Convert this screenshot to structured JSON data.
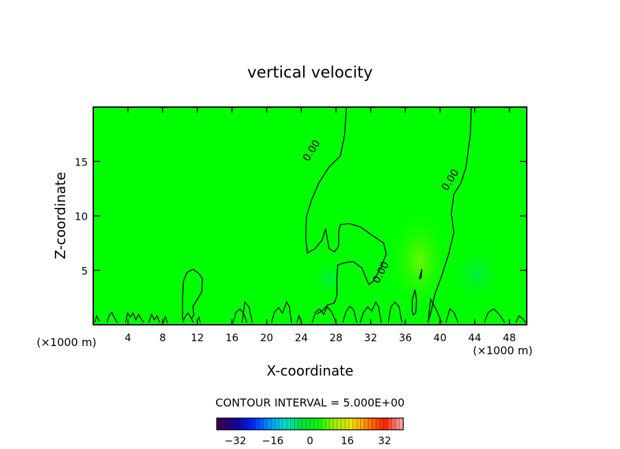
{
  "chart_data": {
    "type": "heatmap",
    "title": "vertical velocity",
    "xlabel": "X-coordinate",
    "ylabel": "Z-coordinate",
    "x_unit_left": "(×1000 m)",
    "x_unit_right": "(×1000 m)",
    "xlim": [
      0,
      50
    ],
    "ylim": [
      0,
      20
    ],
    "x_ticks": [
      4,
      8,
      12,
      16,
      20,
      24,
      28,
      32,
      36,
      40,
      44,
      48
    ],
    "y_ticks": [
      5,
      10,
      15
    ],
    "background_color": "#00ff00",
    "contour_label": "0.00",
    "contour_interval_text": "CONTOUR INTERVAL = 5.000E+00",
    "colorbar": {
      "ticks": [
        -32,
        -16,
        0,
        16,
        32
      ],
      "range": [
        -40,
        40
      ],
      "colors": [
        "#3a0050",
        "#1a0090",
        "#0020ff",
        "#0090ff",
        "#00e0c8",
        "#00e040",
        "#00ff00",
        "#a0f000",
        "#f0e000",
        "#ff8000",
        "#ff2000",
        "#ffa0a0"
      ]
    },
    "contours": [
      {
        "level": 0,
        "points": [
          [
            29.2,
            20
          ],
          [
            29,
            17.5
          ],
          [
            28.5,
            15.5
          ],
          [
            27.2,
            14.5
          ],
          [
            26,
            13
          ],
          [
            25.2,
            11.5
          ],
          [
            24.6,
            10
          ],
          [
            24.5,
            8
          ],
          [
            24.7,
            6.6
          ],
          [
            25.6,
            7
          ],
          [
            26.4,
            7.8
          ],
          [
            26.8,
            8.8
          ],
          [
            27.2,
            7
          ],
          [
            27.8,
            6.7
          ],
          [
            28.3,
            7.2
          ],
          [
            28.3,
            8.5
          ],
          [
            28.5,
            9.2
          ],
          [
            29.5,
            9.3
          ],
          [
            30.8,
            9
          ],
          [
            32.2,
            8.2
          ],
          [
            33.5,
            7.5
          ],
          [
            33.8,
            6.5
          ],
          [
            33.3,
            5.5
          ],
          [
            32.8,
            4.7
          ],
          [
            32.3,
            4
          ],
          [
            31.8,
            3.7
          ],
          [
            31.4,
            4.4
          ],
          [
            31,
            5.2
          ],
          [
            30,
            5.8
          ],
          [
            29,
            5.7
          ],
          [
            28.2,
            5.5
          ],
          [
            28.1,
            4.2
          ],
          [
            28.1,
            2.7
          ],
          [
            27.8,
            2
          ],
          [
            27,
            1.8
          ],
          [
            26.6,
            1.4
          ],
          [
            25.8,
            1
          ]
        ]
      },
      {
        "level": 0,
        "points": [
          [
            43.6,
            20
          ],
          [
            43.5,
            17.5
          ],
          [
            43,
            14.5
          ],
          [
            42.4,
            13
          ],
          [
            41.6,
            12
          ],
          [
            41.3,
            10.2
          ],
          [
            41.6,
            8.5
          ],
          [
            41,
            6.5
          ],
          [
            40.2,
            4.5
          ],
          [
            39.4,
            2.8
          ],
          [
            39,
            1.3
          ],
          [
            38.6,
            0.2
          ]
        ]
      },
      {
        "level": 0,
        "points": [
          [
            10.3,
            0.5
          ],
          [
            10.3,
            2.5
          ],
          [
            10.4,
            4
          ],
          [
            10.8,
            4.8
          ],
          [
            11.5,
            5.1
          ],
          [
            12.2,
            4.7
          ],
          [
            12.6,
            4.2
          ],
          [
            12.5,
            3
          ],
          [
            11.9,
            2.2
          ],
          [
            11.5,
            1.7
          ],
          [
            11.6,
            0.9
          ],
          [
            11.3,
            0.5
          ]
        ]
      },
      {
        "level": 0,
        "points": [
          [
            36.8,
            1.2
          ],
          [
            36.8,
            2.3
          ],
          [
            37.1,
            3.2
          ],
          [
            37.3,
            2.3
          ],
          [
            37.2,
            1.1
          ],
          [
            36.9,
            0.9
          ],
          [
            36.8,
            1.2
          ]
        ]
      },
      {
        "level": 0,
        "points": [
          [
            37.6,
            4.2
          ],
          [
            37.9,
            5.1
          ],
          [
            37.8,
            4.3
          ],
          [
            37.6,
            4.2
          ]
        ]
      }
    ],
    "contour_labels": [
      {
        "x": 25.2,
        "y": 16,
        "angle": -58
      },
      {
        "x": 41.2,
        "y": 13.3,
        "angle": -58
      },
      {
        "x": 33.2,
        "y": 4.8,
        "angle": -62
      }
    ]
  }
}
